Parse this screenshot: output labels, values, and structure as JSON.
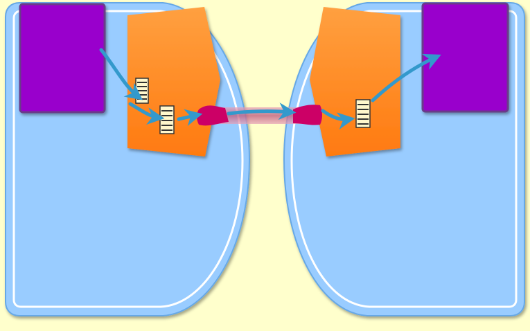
{
  "colors": {
    "background": "#ffffcc",
    "host_fill": "#99ccff",
    "host_outline": "#ffffff",
    "process_fill": "#9900cc",
    "buffer_fill_top": "#ffa040",
    "buffer_fill_bottom": "#ff7a10",
    "arrow_color": "#3399cc",
    "socket_color": "#cc0066",
    "link_color": "#cc7799"
  },
  "diagram": {
    "nodes": [
      {
        "id": "host-left",
        "kind": "host"
      },
      {
        "id": "host-right",
        "kind": "host"
      },
      {
        "id": "process-left",
        "kind": "process"
      },
      {
        "id": "process-right",
        "kind": "process"
      },
      {
        "id": "buffer-left",
        "kind": "buffer"
      },
      {
        "id": "buffer-right",
        "kind": "buffer"
      },
      {
        "id": "socket-left",
        "kind": "socket"
      },
      {
        "id": "socket-right",
        "kind": "socket"
      }
    ],
    "edges": [
      {
        "from": "process-left",
        "to": "buffer-left"
      },
      {
        "from": "buffer-left",
        "to": "socket-left"
      },
      {
        "from": "socket-left",
        "to": "socket-right"
      },
      {
        "from": "socket-right",
        "to": "buffer-right"
      },
      {
        "from": "buffer-right",
        "to": "process-right"
      }
    ]
  }
}
